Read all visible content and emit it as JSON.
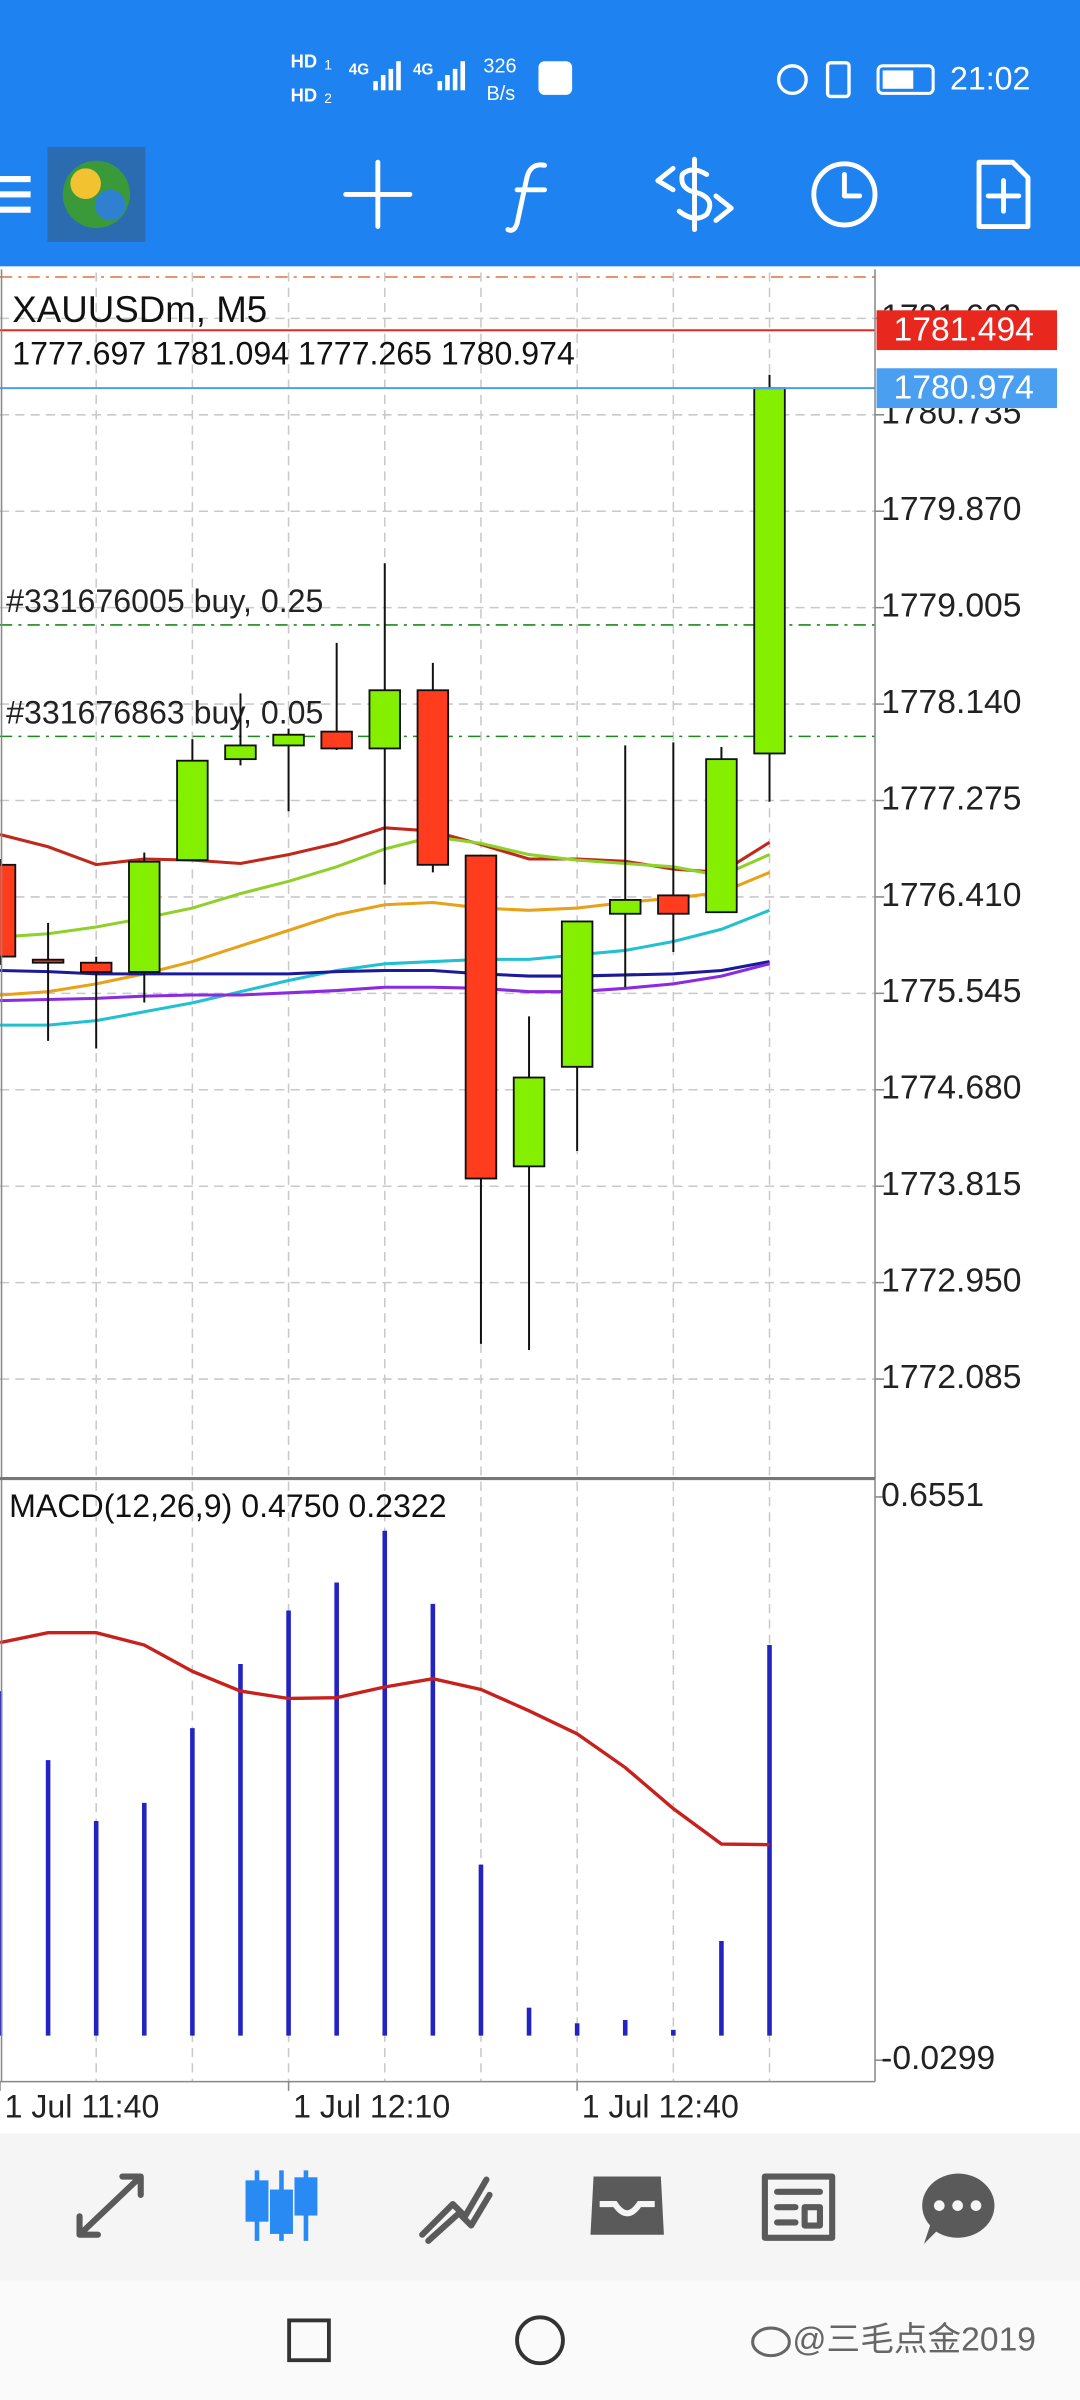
{
  "status_bar": {
    "hd_badges": [
      "HD",
      "HD"
    ],
    "sim_slots": [
      "1",
      "2"
    ],
    "network": [
      "4G",
      "4G"
    ],
    "net_speed": "326",
    "net_unit": "B/s",
    "time": "21:02"
  },
  "chart_data": [
    {
      "type": "candlestick",
      "title": "XAUUSDm, M5",
      "categories": [
        "1 Jul 11:40",
        null,
        null,
        null,
        null,
        null,
        "1 Jul 12:10",
        null,
        null,
        null,
        null,
        null,
        "1 Jul 12:40",
        null,
        null,
        null,
        null
      ],
      "open": [
        1776.698,
        1775.847,
        1775.82,
        1775.737,
        1776.74,
        1777.646,
        1777.769,
        1777.893,
        1777.742,
        1778.264,
        1776.781,
        1773.993,
        1774.886,
        1776.259,
        1776.424,
        1776.273,
        1777.697
      ],
      "high": [
        1776.75,
        1776.177,
        1775.875,
        1776.808,
        1777.824,
        1778.236,
        1777.92,
        1778.689,
        1779.403,
        1778.51,
        1776.781,
        1775.339,
        1776.19,
        1777.769,
        1777.797,
        1777.755,
        1781.094
      ],
      "low": [
        1775.8,
        1775.119,
        1775.05,
        1775.463,
        1776.74,
        1777.59,
        1777.179,
        1777.728,
        1776.52,
        1776.63,
        1772.401,
        1772.346,
        1774.131,
        1775.6,
        1775.916,
        1776.273,
        1777.265
      ],
      "close": [
        1775.875,
        1775.82,
        1775.737,
        1776.726,
        1777.632,
        1777.769,
        1777.865,
        1777.742,
        1778.264,
        1776.698,
        1773.884,
        1774.79,
        1776.19,
        1776.383,
        1776.259,
        1777.646,
        1780.974
      ],
      "up_color": "#84f000",
      "down_color": "#ff3c1e",
      "ylim": [
        1771.206,
        1782.012
      ],
      "yticks": [
        1772.085,
        {
          "value": 1772.95,
          "label": "1772.950"
        },
        1773.815,
        {
          "value": 1774.68,
          "label": "1774.680"
        },
        1775.545,
        {
          "value": 1776.41,
          "label": "1776.410"
        },
        1777.275,
        {
          "value": 1778.14,
          "label": "1778.140"
        },
        1779.005,
        {
          "value": 1779.87,
          "label": "1779.870"
        },
        1780.735,
        {
          "value": 1781.6,
          "label": "1781.600"
        }
      ],
      "grid": true,
      "ask": 1781.494,
      "ask_color": "#e8281e",
      "bid": 1780.974,
      "bid_color": "#4a9ff0",
      "orders": [
        {
          "label": "#331676005 buy, 0.25",
          "price": 1778.85
        },
        {
          "label": "#331676863 buy, 0.05",
          "price": 1777.85
        }
      ],
      "moving_averages": [
        {
          "color": "#c0281c",
          "values": [
            1776.97,
            1776.86,
            1776.7,
            1776.75,
            1776.74,
            1776.71,
            1776.79,
            1776.89,
            1777.03,
            1777.0,
            1776.88,
            1776.75,
            1776.75,
            1776.73,
            1776.66,
            1776.63,
            1776.9
          ]
        },
        {
          "color": "#8fd12a",
          "values": [
            1776.05,
            1776.08,
            1776.14,
            1776.22,
            1776.31,
            1776.44,
            1776.55,
            1776.68,
            1776.84,
            1776.95,
            1776.89,
            1776.79,
            1776.74,
            1776.71,
            1776.68,
            1776.6,
            1776.79
          ]
        },
        {
          "color": "#e8a21a",
          "values": [
            1775.53,
            1775.56,
            1775.63,
            1775.72,
            1775.83,
            1775.97,
            1776.11,
            1776.25,
            1776.34,
            1776.36,
            1776.31,
            1776.29,
            1776.31,
            1776.36,
            1776.4,
            1776.45,
            1776.63
          ]
        },
        {
          "color": "#22c0d0",
          "values": [
            1775.26,
            1775.26,
            1775.3,
            1775.38,
            1775.46,
            1775.56,
            1775.66,
            1775.75,
            1775.81,
            1775.83,
            1775.85,
            1775.85,
            1775.89,
            1775.93,
            1776.01,
            1776.12,
            1776.29
          ]
        },
        {
          "color": "#1a1a9a",
          "values": [
            1775.75,
            1775.74,
            1775.72,
            1775.72,
            1775.72,
            1775.72,
            1775.72,
            1775.74,
            1775.75,
            1775.75,
            1775.72,
            1775.7,
            1775.7,
            1775.71,
            1775.72,
            1775.75,
            1775.83
          ]
        },
        {
          "color": "#8a2be2",
          "values": [
            1775.48,
            1775.49,
            1775.5,
            1775.52,
            1775.53,
            1775.53,
            1775.55,
            1775.57,
            1775.6,
            1775.6,
            1775.59,
            1775.56,
            1775.56,
            1775.59,
            1775.63,
            1775.7,
            1775.81
          ]
        }
      ]
    },
    {
      "type": "macd",
      "title": "MACD(12,26,9)",
      "histogram": {
        "color": "#2323c2",
        "values": [
          0.419,
          0.335,
          0.261,
          0.283,
          0.374,
          0.452,
          0.517,
          0.551,
          0.614,
          0.525,
          0.208,
          0.034,
          0.015,
          0.019,
          0.007,
          0.115,
          0.475
        ],
        "current_label": "0.4750"
      },
      "signal": {
        "color": "#c8201c",
        "values": [
          0.478,
          0.49,
          0.49,
          0.475,
          0.443,
          0.419,
          0.41,
          0.411,
          0.424,
          0.434,
          0.421,
          0.395,
          0.367,
          0.326,
          0.276,
          0.233,
          0.2322
        ],
        "current_label": "0.2322"
      },
      "ylim": [
        -0.0299,
        0.6551
      ],
      "yticks": [
        0.6551,
        -0.0299
      ]
    }
  ],
  "watermark": "@三毛点金2019"
}
